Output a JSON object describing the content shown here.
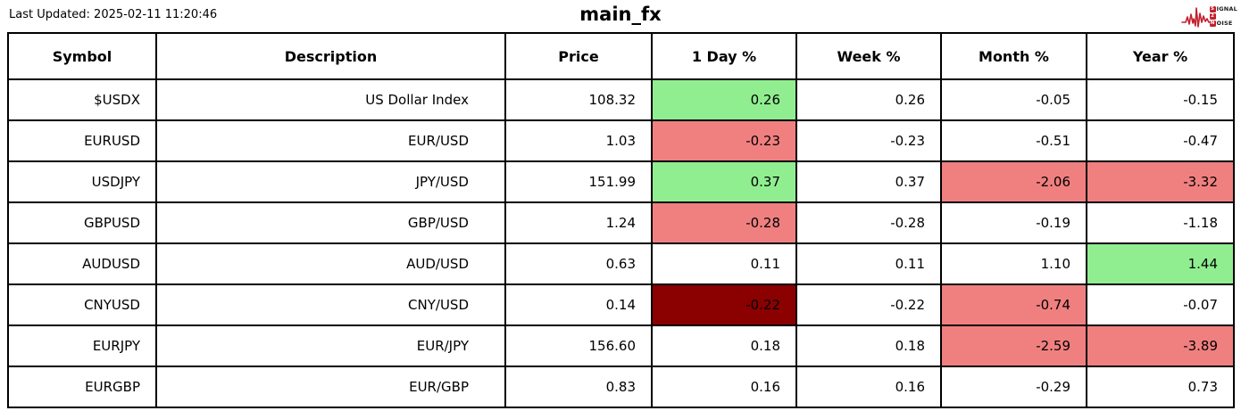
{
  "header": {
    "last_updated": "Last Updated: 2025-02-11 11:20:46",
    "logo": {
      "signal_initial": "S",
      "signal_rest": "IGNAL",
      "middle": "2",
      "noise_initial": "N",
      "noise_rest": "OISE",
      "waveform_color": "#c2202e"
    }
  },
  "chart_data": {
    "type": "table",
    "title": "main_fx",
    "columns": [
      "Symbol",
      "Description",
      "Price",
      "1 Day %",
      "Week %",
      "Month %",
      "Year %"
    ],
    "rows": [
      {
        "cells": [
          "$USDX",
          "US Dollar Index",
          "108.32",
          "0.26",
          "0.26",
          "-0.05",
          "-0.15"
        ],
        "bg": [
          null,
          null,
          null,
          "pos",
          null,
          null,
          null
        ]
      },
      {
        "cells": [
          "EURUSD",
          "EUR/USD",
          "1.03",
          "-0.23",
          "-0.23",
          "-0.51",
          "-0.47"
        ],
        "bg": [
          null,
          null,
          null,
          "neg",
          null,
          null,
          null
        ]
      },
      {
        "cells": [
          "USDJPY",
          "JPY/USD",
          "151.99",
          "0.37",
          "0.37",
          "-2.06",
          "-3.32"
        ],
        "bg": [
          null,
          null,
          null,
          "pos",
          null,
          "neg",
          "neg"
        ]
      },
      {
        "cells": [
          "GBPUSD",
          "GBP/USD",
          "1.24",
          "-0.28",
          "-0.28",
          "-0.19",
          "-1.18"
        ],
        "bg": [
          null,
          null,
          null,
          "neg",
          null,
          null,
          null
        ]
      },
      {
        "cells": [
          "AUDUSD",
          "AUD/USD",
          "0.63",
          "0.11",
          "0.11",
          "1.10",
          "1.44"
        ],
        "bg": [
          null,
          null,
          null,
          null,
          null,
          null,
          "pos"
        ]
      },
      {
        "cells": [
          "CNYUSD",
          "CNY/USD",
          "0.14",
          "-0.22",
          "-0.22",
          "-0.74",
          "-0.07"
        ],
        "bg": [
          null,
          null,
          null,
          "strongneg",
          null,
          "neg",
          null
        ]
      },
      {
        "cells": [
          "EURJPY",
          "EUR/JPY",
          "156.60",
          "0.18",
          "0.18",
          "-2.59",
          "-3.89"
        ],
        "bg": [
          null,
          null,
          null,
          null,
          null,
          "neg",
          "neg"
        ]
      },
      {
        "cells": [
          "EURGBP",
          "EUR/GBP",
          "0.83",
          "0.16",
          "0.16",
          "-0.29",
          "0.73"
        ],
        "bg": [
          null,
          null,
          null,
          null,
          null,
          null,
          null
        ]
      }
    ],
    "cell_colors": {
      "pos": "#90ee90",
      "neg": "#f08080",
      "strongneg": "#8b0000"
    },
    "layout_hints": {
      "header_bold": true,
      "values_right_aligned": true,
      "grid": "black solid borders"
    }
  }
}
